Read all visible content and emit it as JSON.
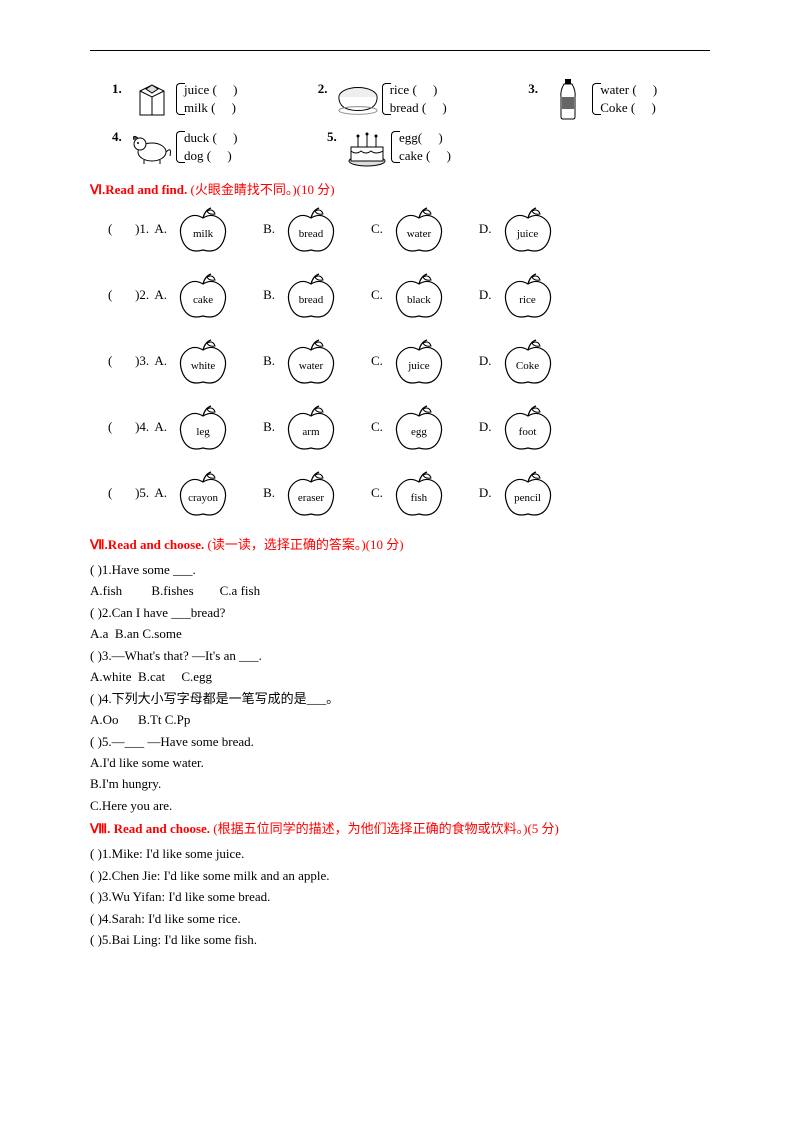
{
  "top_pairs": {
    "row1": [
      {
        "num": "1.",
        "img": "carton",
        "lines": [
          "juice (     )",
          "milk (     )"
        ]
      },
      {
        "num": "2.",
        "img": "bread",
        "lines": [
          "rice (     )",
          "bread (     )"
        ]
      },
      {
        "num": "3.",
        "img": "bottle",
        "lines": [
          "water (     )",
          "Coke (     )"
        ]
      }
    ],
    "row2": [
      {
        "num": "4.",
        "img": "dog",
        "lines": [
          "duck (     )",
          "dog (     )"
        ]
      },
      {
        "num": "5.",
        "img": "cake",
        "lines": [
          "egg(     )",
          "cake (     )"
        ]
      }
    ]
  },
  "sectionVI": {
    "heading": "Ⅵ.Read and find. ",
    "paren": "(火眼金睛找不同。)(10 分)",
    "rows": [
      {
        "num": "1.",
        "opts": [
          "milk",
          "bread",
          "water",
          "juice"
        ]
      },
      {
        "num": "2.",
        "opts": [
          "cake",
          "bread",
          "black",
          "rice"
        ]
      },
      {
        "num": "3.",
        "opts": [
          "white",
          "water",
          "juice",
          "Coke"
        ]
      },
      {
        "num": "4.",
        "opts": [
          "leg",
          "arm",
          "egg",
          "foot"
        ]
      },
      {
        "num": "5.",
        "opts": [
          "crayon",
          "eraser",
          "fish",
          "pencil"
        ]
      }
    ]
  },
  "sectionVII": {
    "heading": "Ⅶ.Read and choose. ",
    "paren": "(读一读，选择正确的答案。)(10 分)",
    "items": [
      {
        "q": "(    )1.Have some  ___.",
        "opts": "A.fish         B.fishes        C.a fish"
      },
      {
        "q": "(    )2.Can I have  ___bread?",
        "opts": "A.a  B.an C.some"
      },
      {
        "q": "(    )3.—What's that? —It's an  ___.",
        "opts": "A.white  B.cat     C.egg"
      },
      {
        "q": "(    )4.下列大小写字母都是一笔写成的是___。",
        "opts": "A.Oo      B.Tt C.Pp"
      },
      {
        "q": "(    )5.—___                —Have some bread.",
        "opts": ""
      }
    ],
    "q5_extra": [
      "A.I'd like some water.",
      "B.I'm hungry.",
      "C.Here you are."
    ]
  },
  "sectionVIII": {
    "heading": "Ⅷ. Read and choose. ",
    "paren": "(根据五位同学的描述，为他们选择正确的食物或饮料。)(5 分)",
    "lines": [
      "(    )1.Mike: I'd like some juice.",
      "(    )2.Chen Jie: I'd like some milk and an apple.",
      "(    )3.Wu Yifan: I'd like some bread.",
      "(    )4.Sarah: I'd like some rice.",
      "(    )5.Bai Ling: I'd like some fish."
    ]
  }
}
